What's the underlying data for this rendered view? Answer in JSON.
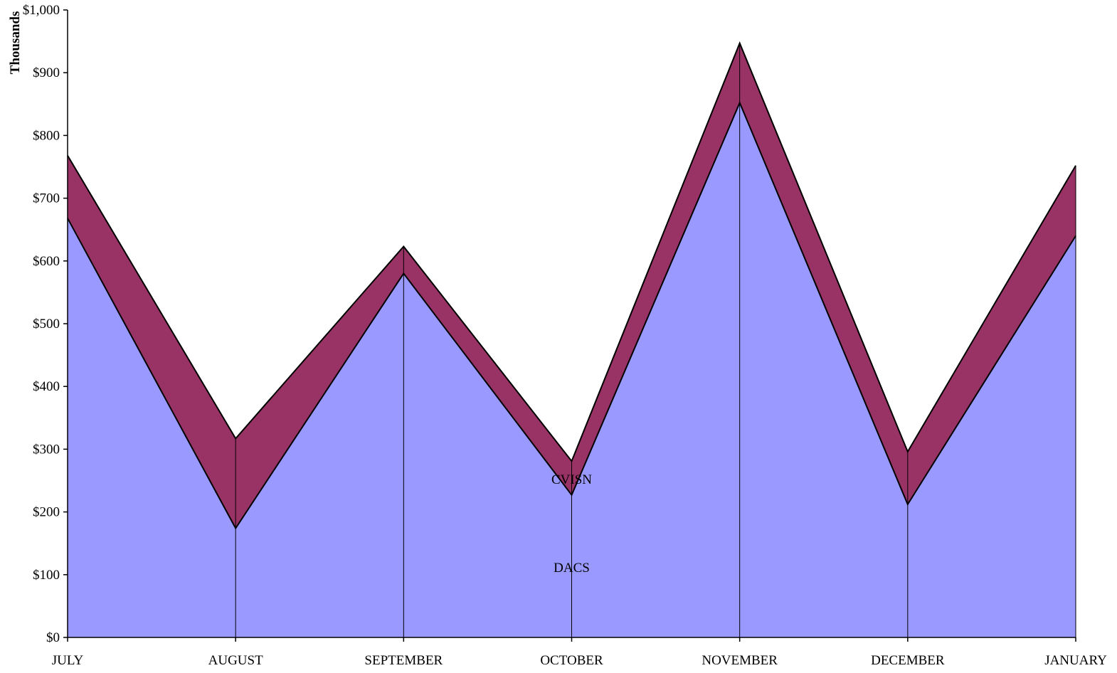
{
  "chart_data": {
    "type": "area",
    "stacked": true,
    "title": "",
    "xlabel": "",
    "ylabel": "Thousands",
    "categories": [
      "JULY",
      "AUGUST",
      "SEPTEMBER",
      "OCTOBER",
      "NOVEMBER",
      "DECEMBER",
      "JANUARY"
    ],
    "ylim": [
      0,
      1000
    ],
    "yticks": [
      0,
      100,
      200,
      300,
      400,
      500,
      600,
      700,
      800,
      900,
      1000
    ],
    "ytick_labels": [
      "$0",
      "$100",
      "$200",
      "$300",
      "$400",
      "$500",
      "$600",
      "$700",
      "$800",
      "$900",
      "$1,000"
    ],
    "grid": false,
    "series": [
      {
        "name": "DACS",
        "values": [
          668,
          174,
          580,
          227,
          852,
          212,
          640
        ],
        "color": "#9999ff"
      },
      {
        "name": "CVISN",
        "values": [
          100,
          143,
          43,
          54,
          95,
          84,
          112
        ],
        "color": "#993366"
      }
    ]
  }
}
